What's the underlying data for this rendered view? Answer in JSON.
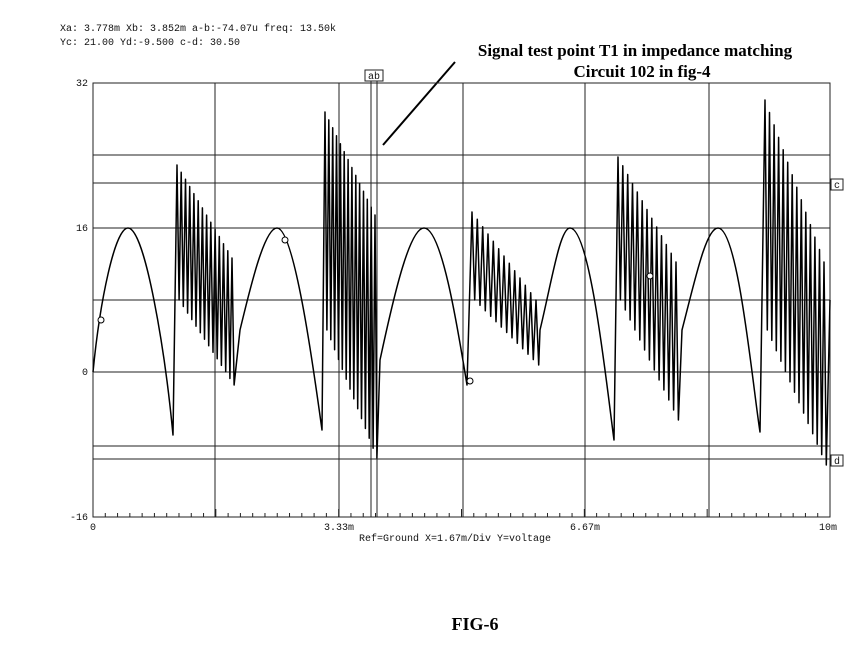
{
  "header": {
    "line1": "Xa: 3.778m    Xb: 3.852m    a-b:-74.07u   freq: 13.50k",
    "line2": "Yc: 21.00    Yd:-9.500    c-d: 30.50"
  },
  "annotation": [
    "Signal test point T1 in impedance matching",
    "Circuit 102 in fig-4"
  ],
  "plot": {
    "y_labels": [
      "32",
      "16",
      "0",
      "-16"
    ],
    "x_labels": [
      "0",
      "3.33m",
      "6.67m",
      "10m"
    ],
    "footer": "Ref=Ground  X=1.67m/Div Y=voltage",
    "cursors": [
      "ab",
      "c",
      "d"
    ]
  },
  "caption": "FIG-6"
}
